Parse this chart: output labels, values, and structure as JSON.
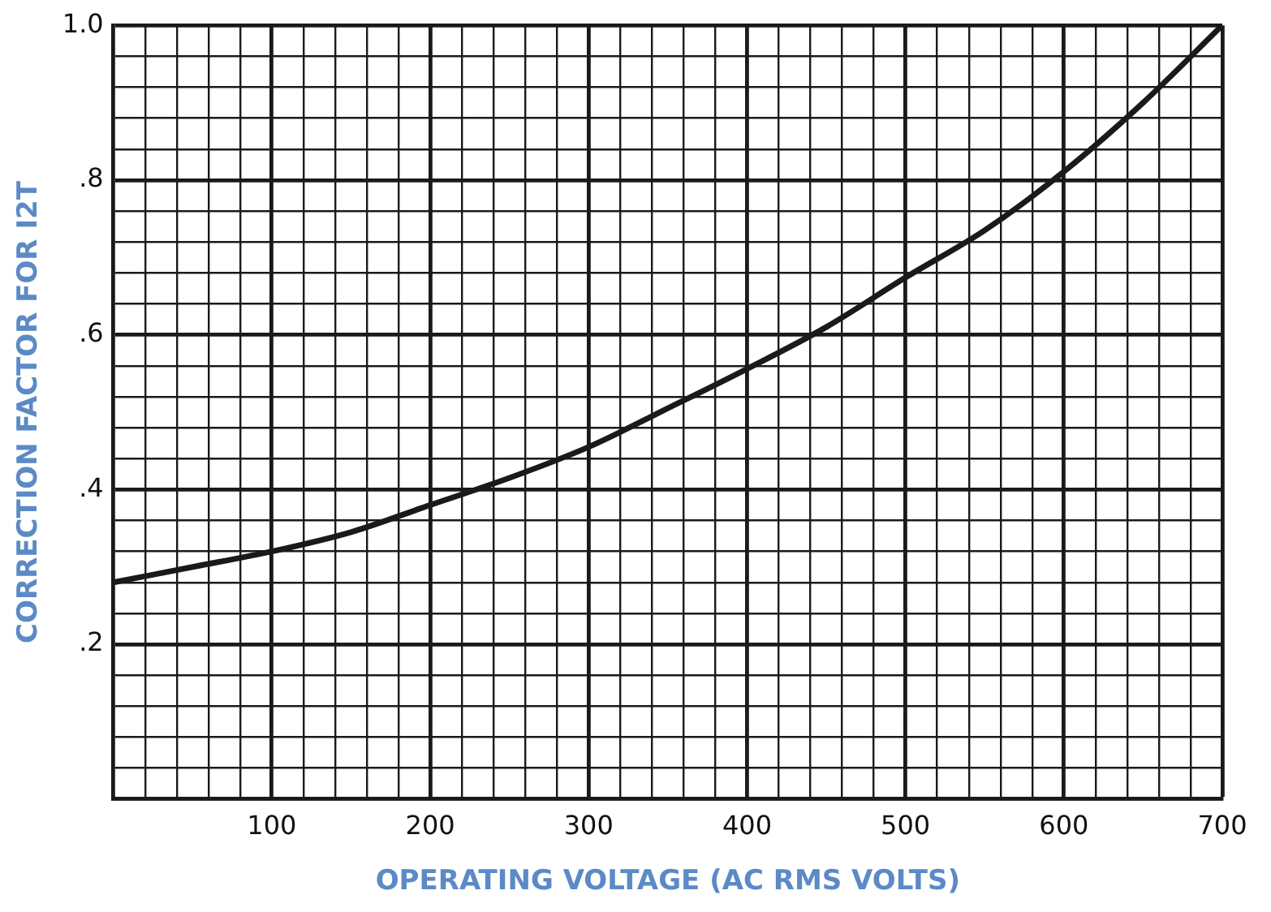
{
  "chart_data": {
    "type": "line",
    "xlabel": "OPERATING VOLTAGE (AC RMS VOLTS)",
    "ylabel": "CORRECTION FACTOR FOR I2T",
    "x": [
      0,
      50,
      100,
      150,
      200,
      250,
      300,
      350,
      400,
      450,
      500,
      550,
      600,
      650,
      700
    ],
    "series": [
      {
        "color": "#1a1a1a",
        "values": [
          0.28,
          0.3,
          0.32,
          0.345,
          0.38,
          0.415,
          0.455,
          0.505,
          0.556,
          0.61,
          0.674,
          0.735,
          0.811,
          0.9,
          1.0
        ]
      }
    ],
    "xlim": [
      0,
      700
    ],
    "ylim": [
      0,
      1.0
    ],
    "xticks": [
      {
        "value": 0,
        "label": null
      },
      {
        "value": 20,
        "label": null
      },
      {
        "value": 40,
        "label": null
      },
      {
        "value": 60,
        "label": null
      },
      {
        "value": 80,
        "label": null
      },
      100,
      {
        "value": 120,
        "label": null
      },
      {
        "value": 140,
        "label": null
      },
      {
        "value": 160,
        "label": null
      },
      {
        "value": 180,
        "label": null
      },
      200,
      {
        "value": 220,
        "label": null
      },
      {
        "value": 240,
        "label": null
      },
      {
        "value": 260,
        "label": null
      },
      {
        "value": 280,
        "label": null
      },
      300,
      {
        "value": 320,
        "label": null
      },
      {
        "value": 340,
        "label": null
      },
      {
        "value": 360,
        "label": null
      },
      {
        "value": 380,
        "label": null
      },
      400,
      {
        "value": 420,
        "label": null
      },
      {
        "value": 440,
        "label": null
      },
      {
        "value": 460,
        "label": null
      },
      {
        "value": 480,
        "label": null
      },
      500,
      {
        "value": 520,
        "label": null
      },
      {
        "value": 540,
        "label": null
      },
      {
        "value": 560,
        "label": null
      },
      {
        "value": 580,
        "label": null
      },
      600,
      {
        "value": 620,
        "label": null
      },
      {
        "value": 640,
        "label": null
      },
      {
        "value": 660,
        "label": null
      },
      {
        "value": 680,
        "label": null
      },
      700
    ],
    "yticks": [
      {
        "value": 0,
        "label": null
      },
      {
        "value": 0.04,
        "label": null
      },
      {
        "value": 0.08,
        "label": null
      },
      {
        "value": 0.12,
        "label": null
      },
      {
        "value": 0.16,
        "label": null
      },
      {
        "value": 0.2,
        "label": ".2"
      },
      {
        "value": 0.24,
        "label": null
      },
      {
        "value": 0.28,
        "label": null
      },
      {
        "value": 0.32,
        "label": null
      },
      {
        "value": 0.36,
        "label": null
      },
      {
        "value": 0.4,
        "label": ".4"
      },
      {
        "value": 0.44,
        "label": null
      },
      {
        "value": 0.48,
        "label": null
      },
      {
        "value": 0.52,
        "label": null
      },
      {
        "value": 0.56,
        "label": null
      },
      {
        "value": 0.6,
        "label": ".6"
      },
      {
        "value": 0.64,
        "label": null
      },
      {
        "value": 0.68,
        "label": null
      },
      {
        "value": 0.72,
        "label": null
      },
      {
        "value": 0.76,
        "label": null
      },
      {
        "value": 0.8,
        "label": ".8"
      },
      {
        "value": 0.84,
        "label": null
      },
      {
        "value": 0.88,
        "label": null
      },
      {
        "value": 0.92,
        "label": null
      },
      {
        "value": 0.96,
        "label": null
      },
      {
        "value": 1.0,
        "label": "1.0"
      }
    ],
    "grid": true,
    "marker": "none",
    "line_style": "solid",
    "legend": false
  }
}
